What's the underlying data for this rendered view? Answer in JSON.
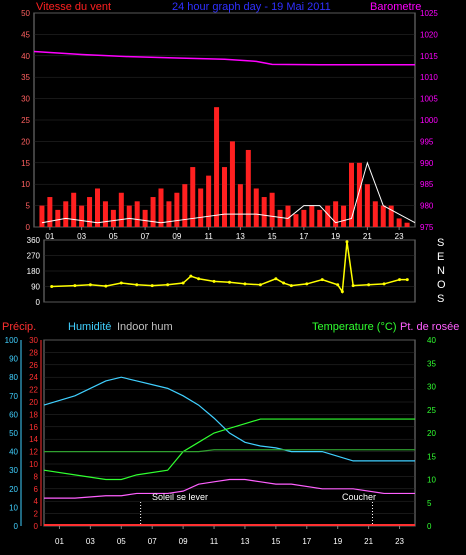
{
  "header": {
    "wind_label": "Vitesse du vent",
    "title": "24 hour graph day - 19 Mai 2011",
    "baro_label": "Barometre"
  },
  "colors": {
    "wind_gust": "#ff2020",
    "wind_avg": "#ffffff",
    "wind_low": "#ffff40",
    "baro": "#ff00ff",
    "title": "#3030ff",
    "direction": "#ffff00",
    "precip": "#ff3030",
    "humidity": "#40d0ff",
    "indoor": "#c0c0c0",
    "temperature": "#30ff30",
    "dewpoint": "#ff60ff",
    "axis_orange": "#ff6060"
  },
  "x_ticks": [
    "01",
    "03",
    "05",
    "07",
    "09",
    "11",
    "13",
    "15",
    "17",
    "19",
    "21",
    "23"
  ],
  "panel_top": {
    "y_left_ticks": [
      "50",
      "45",
      "40",
      "35",
      "30",
      "25",
      "20",
      "15",
      "10",
      "5",
      "0"
    ],
    "y_right_ticks": [
      "1025",
      "1020",
      "1015",
      "1010",
      "1005",
      "1000",
      "995",
      "990",
      "985",
      "980",
      "975"
    ],
    "ylim_left": [
      0,
      50
    ],
    "ylim_right": [
      975,
      1025
    ]
  },
  "panel_dir": {
    "y_ticks": [
      "360",
      "270",
      "180",
      "90",
      "0"
    ],
    "ylim": [
      0,
      360
    ],
    "side_letters": [
      "S",
      "E",
      "N",
      "O",
      "S"
    ]
  },
  "panel_bottom": {
    "precip_label": "Précip.",
    "humidity_label": "Humidité",
    "indoor_label": "Indoor hum",
    "temp_label": "Temperature (°C)",
    "dew_label": "Pt. de rosée",
    "hum_ticks": [
      "100",
      "90",
      "80",
      "70",
      "60",
      "50",
      "40",
      "30",
      "20",
      "10",
      "0"
    ],
    "precip_ticks": [
      "30",
      "28",
      "26",
      "24",
      "22",
      "20",
      "18",
      "16",
      "14",
      "12",
      "10",
      "8",
      "6",
      "4",
      "2",
      "0"
    ],
    "temp_ticks": [
      "40",
      "35",
      "30",
      "25",
      "20",
      "15",
      "10",
      "5",
      "0"
    ],
    "sunrise_label": "Soleil se lever",
    "sunset_label": "Coucher"
  },
  "chart_data": [
    {
      "type": "line",
      "title": "24 hour graph day - 19 Mai 2011",
      "x_hours": [
        0,
        3,
        6,
        9,
        12,
        14,
        15,
        18,
        21,
        24
      ],
      "series": [
        {
          "name": "Barometre",
          "axis": "right",
          "values": [
            1016,
            1015.3,
            1014.8,
            1014.5,
            1014.2,
            1013.7,
            1013.0,
            1012.9,
            1012.9,
            1012.9
          ]
        }
      ],
      "wind_gust": {
        "x_hours": [
          0.5,
          1,
          1.5,
          2,
          2.5,
          3,
          3.5,
          4,
          4.5,
          5,
          5.5,
          6,
          6.5,
          7,
          7.5,
          8,
          8.5,
          9,
          9.5,
          10,
          10.5,
          11,
          11.5,
          12,
          12.5,
          13,
          13.5,
          14,
          14.5,
          15,
          15.5,
          16,
          16.5,
          17,
          17.5,
          18,
          18.5,
          19,
          19.5,
          20,
          20.5,
          21,
          21.5,
          22,
          22.5,
          23,
          23.5
        ],
        "values": [
          5,
          7,
          4,
          6,
          8,
          5,
          7,
          9,
          6,
          4,
          8,
          5,
          6,
          4,
          7,
          9,
          6,
          8,
          10,
          14,
          9,
          12,
          28,
          14,
          20,
          10,
          18,
          9,
          7,
          8,
          4,
          5,
          3,
          4,
          5,
          4,
          5,
          6,
          5,
          15,
          15,
          10,
          6,
          5,
          5,
          2,
          1
        ]
      },
      "wind_avg": {
        "x_hours": [
          0.5,
          2,
          4,
          6,
          8,
          10,
          12,
          14,
          16,
          17,
          18,
          19,
          20,
          21,
          22,
          23,
          24
        ],
        "values": [
          1,
          2,
          1,
          2,
          1,
          2,
          3,
          3,
          2,
          5,
          5,
          1,
          2,
          15,
          5,
          3,
          1
        ]
      },
      "ylim_left": [
        0,
        50
      ],
      "ylim_right": [
        975,
        1025
      ]
    },
    {
      "type": "scatter",
      "name": "Direction du vent",
      "x_hours": [
        0.5,
        2,
        3,
        4,
        5,
        6,
        7,
        8,
        9,
        9.5,
        10,
        11,
        12,
        13,
        14,
        15,
        15.5,
        16,
        17,
        18,
        19,
        19.3,
        19.6,
        20,
        21,
        22,
        23,
        23.5
      ],
      "values": [
        90,
        95,
        100,
        92,
        110,
        100,
        95,
        100,
        110,
        150,
        135,
        120,
        115,
        105,
        100,
        135,
        110,
        95,
        105,
        130,
        100,
        60,
        350,
        95,
        100,
        105,
        130,
        130
      ],
      "ylim": [
        0,
        360
      ]
    },
    {
      "type": "line",
      "x_hours": [
        0,
        2,
        4,
        5,
        6,
        8,
        9,
        10,
        11,
        12,
        13,
        14,
        15,
        16,
        18,
        20,
        22,
        24
      ],
      "series": [
        {
          "name": "Humidité",
          "axis": "humidity",
          "values": [
            65,
            70,
            78,
            80,
            78,
            74,
            70,
            65,
            58,
            50,
            45,
            43,
            42,
            40,
            40,
            35,
            35,
            35
          ]
        },
        {
          "name": "Temperature (°C)",
          "axis": "temp",
          "values": [
            12,
            11,
            10,
            10,
            11,
            12,
            16,
            18,
            20,
            21,
            22,
            23,
            23,
            23,
            23,
            23,
            23,
            23
          ]
        },
        {
          "name": "Pt. de rosée",
          "axis": "temp",
          "values": [
            6,
            6,
            6.5,
            6.5,
            7,
            7,
            7.5,
            9,
            9.5,
            10,
            10,
            9.5,
            9,
            9,
            8,
            8,
            7,
            7
          ]
        },
        {
          "name": "Indoor hum",
          "axis": "humidity",
          "values": [
            40,
            40,
            40,
            40,
            40,
            40,
            40,
            40,
            41,
            41,
            41,
            41,
            41,
            41,
            41,
            41,
            41,
            41
          ]
        }
      ],
      "precipitation": 0,
      "ylim_humidity": [
        0,
        100
      ],
      "ylim_precip": [
        0,
        30
      ],
      "ylim_temp": [
        0,
        40
      ],
      "sunrise_hour": 6.25,
      "sunset_hour": 21.25
    }
  ]
}
